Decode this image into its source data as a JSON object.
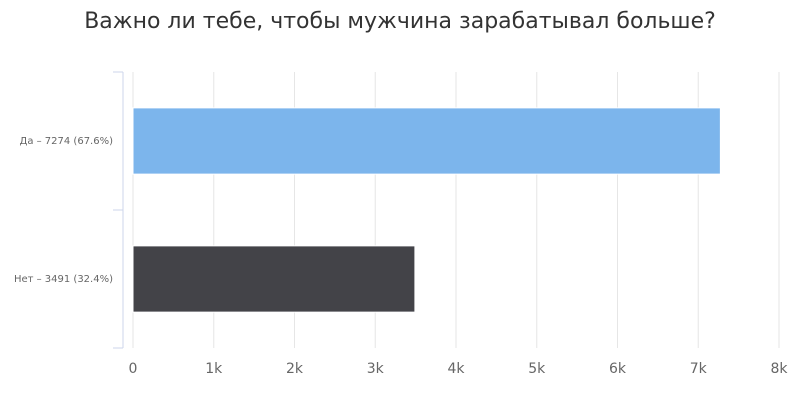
{
  "chart_data": {
    "type": "hbar",
    "title": "Важно ли тебе, чтобы мужчина зарабатывал больше?",
    "categories": [
      "Да – 7274 (67.6%)",
      "Нет – 3491 (32.4%)"
    ],
    "values": [
      7274,
      3491
    ],
    "colors": [
      "#7cb5ec",
      "#434348"
    ],
    "xlim": [
      0,
      8000
    ],
    "xticks": [
      0,
      {
        "value": 1000,
        "label": "1k"
      },
      {
        "value": 2000,
        "label": "2k"
      },
      {
        "value": 3000,
        "label": "3k"
      },
      {
        "value": 4000,
        "label": "4k"
      },
      {
        "value": 5000,
        "label": "5k"
      },
      {
        "value": 6000,
        "label": "6k"
      },
      {
        "value": 7000,
        "label": "7k"
      },
      {
        "value": 8000,
        "label": "8k"
      }
    ],
    "grid": true
  }
}
